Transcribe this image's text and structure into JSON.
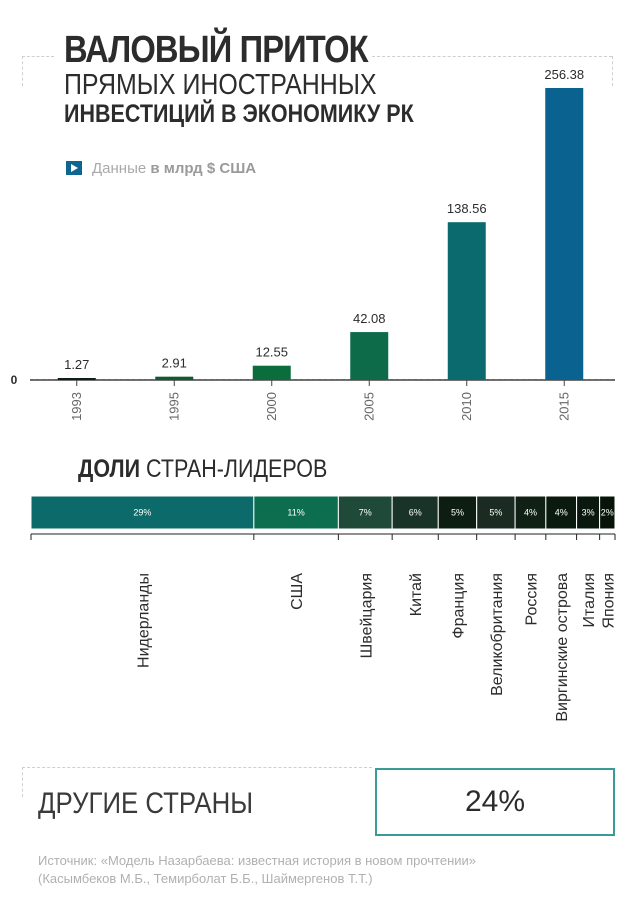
{
  "title": {
    "line1": "ВАЛОВЫЙ ПРИТОК",
    "line2": "ПРЯМЫХ ИНОСТРАННЫХ",
    "line3": "ИНВЕСТИЦИЙ В ЭКОНОМИКУ РК"
  },
  "note": {
    "prefix": "Данные ",
    "unit": "в млрд $ США"
  },
  "colors": {
    "dark_teal": "#0a6a6e",
    "blue": "#0a6291",
    "green": "#0d6e4c",
    "near_black": "#0c1f12"
  },
  "chart_data": [
    {
      "type": "bar",
      "categories": [
        "1993",
        "1995",
        "2000",
        "2005",
        "2010",
        "2015"
      ],
      "values": [
        1.27,
        2.91,
        12.55,
        42.08,
        138.56,
        256.38
      ],
      "value_labels": [
        "1.27",
        "2.91",
        "12.55",
        "42.08",
        "138.56",
        "256.38"
      ],
      "bar_colors": [
        "#101f15",
        "#0e5a33",
        "#0b6d3b",
        "#0d6b49",
        "#0a6a6e",
        "#0a6291"
      ],
      "ylim": [
        0,
        256.38
      ],
      "zero_label": "0",
      "grid": false
    },
    {
      "type": "bar",
      "orientation": "stacked-horizontal",
      "title_bold": "ДОЛИ",
      "title_rest": " СТРАН-ЛИДЕРОВ",
      "categories": [
        "Нидерланды",
        "США",
        "Швейцария",
        "Китай",
        "Франция",
        "Великобритания",
        "Россия",
        "Виргинские острова",
        "Италия",
        "Япония"
      ],
      "values": [
        29,
        11,
        7,
        6,
        5,
        5,
        4,
        4,
        3,
        2
      ],
      "value_labels": [
        "29%",
        "11%",
        "7%",
        "6%",
        "5%",
        "5%",
        "4%",
        "4%",
        "3%",
        "2%"
      ],
      "segment_colors": [
        "#0c6b6a",
        "#0c6e4f",
        "#1f4a3a",
        "#193329",
        "#0d1d12",
        "#1b2b21",
        "#102015",
        "#0b1a0e",
        "#0a180d",
        "#08140a"
      ]
    }
  ],
  "others": {
    "label": "ДРУГИЕ СТРАНЫ",
    "value": "24%"
  },
  "source": {
    "line1": "Источник: «Модель Назарбаева: известная история в новом прочтении»",
    "line2": "(Касымбеков М.Б., Темирболат Б.Б., Шаймергенов Т.Т.)"
  }
}
